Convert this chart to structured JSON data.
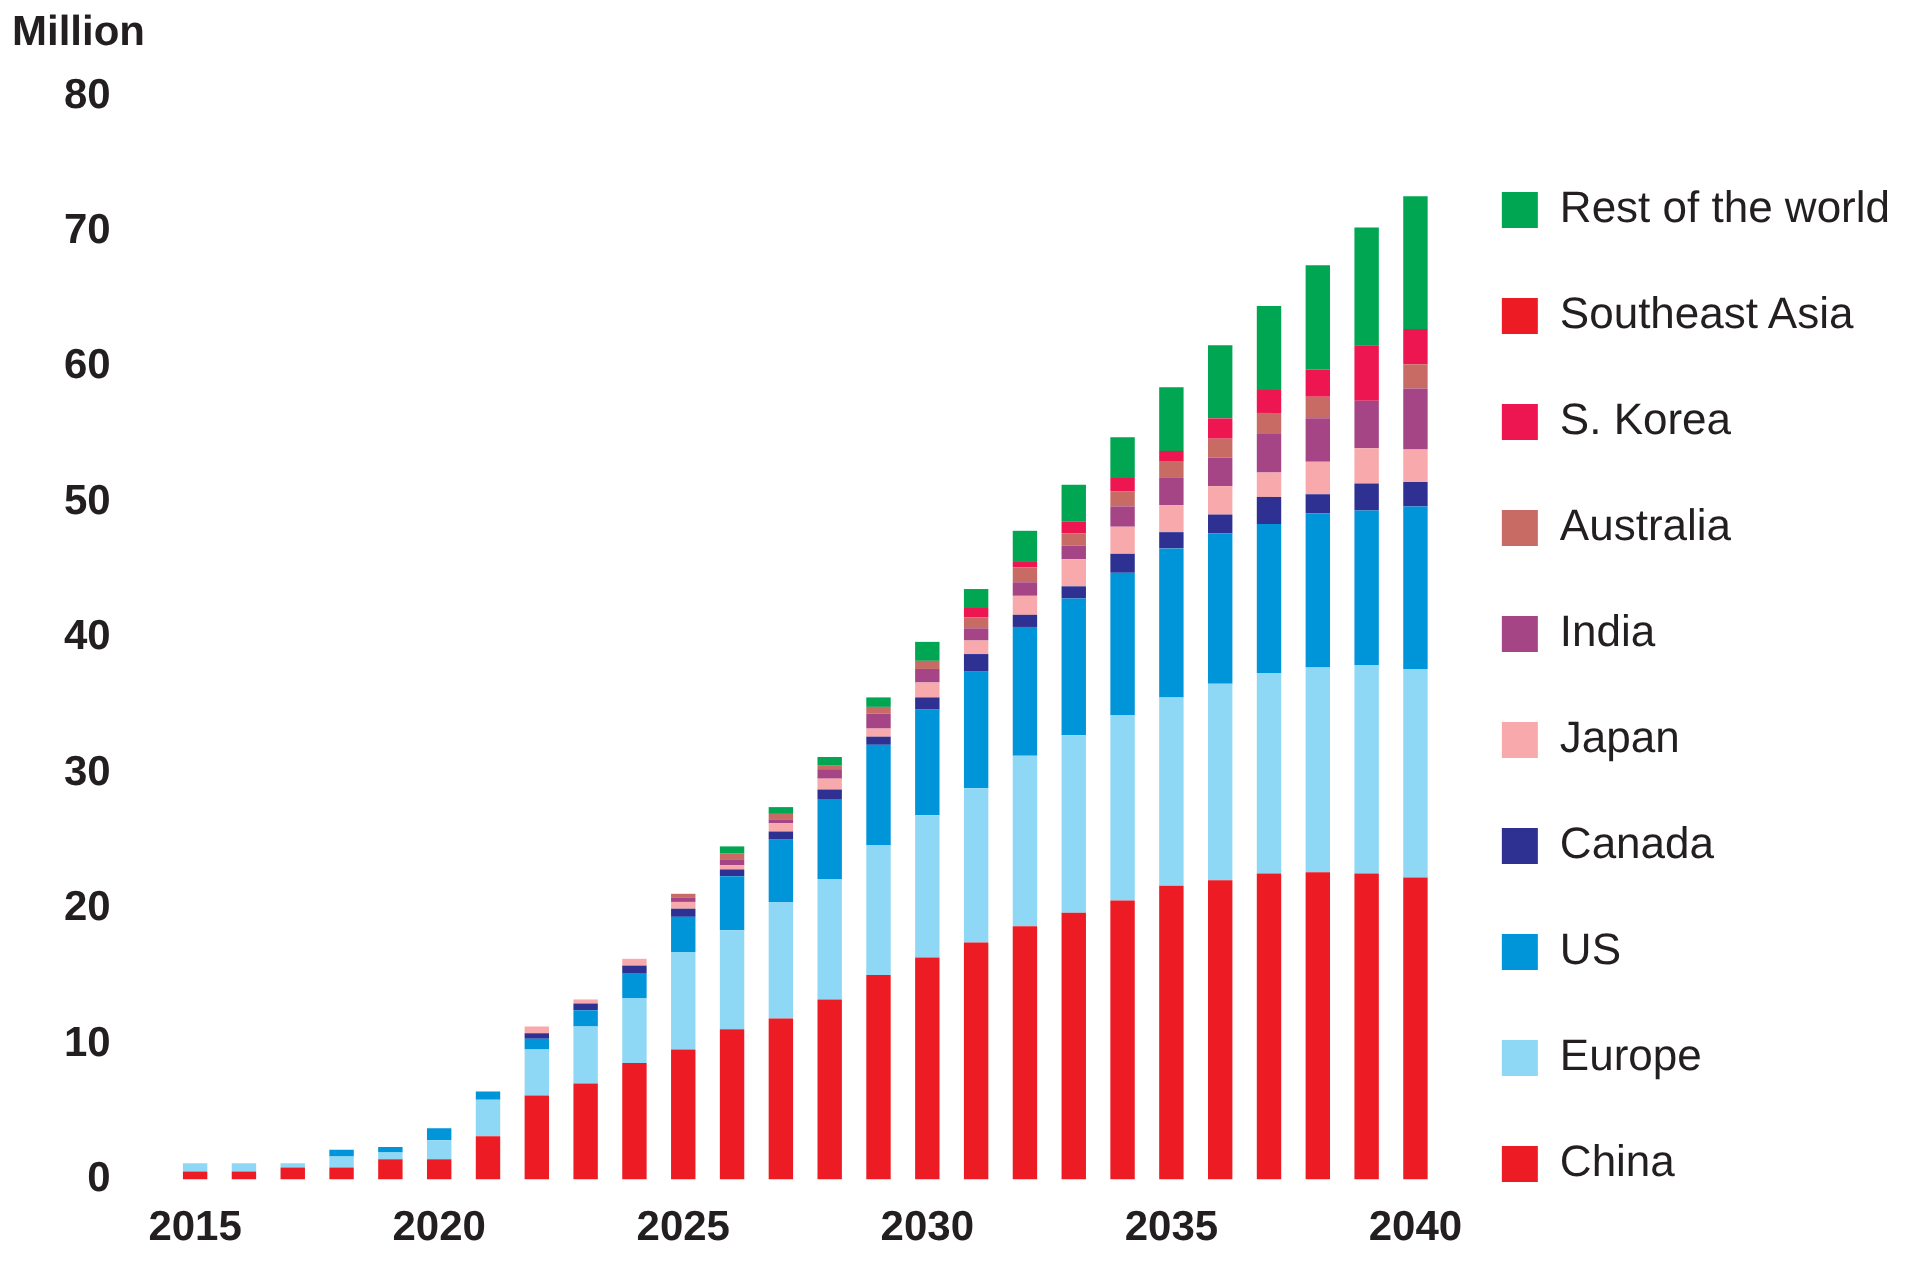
{
  "chart_data": {
    "type": "bar",
    "stacked": true,
    "ylabel": "Million",
    "legend": "right",
    "grid": false,
    "categories": [
      "2015",
      null,
      null,
      null,
      null,
      "2020",
      null,
      null,
      null,
      null,
      "2025",
      null,
      null,
      null,
      null,
      "2030",
      null,
      null,
      null,
      null,
      "2035",
      null,
      null,
      null,
      null,
      "2040"
    ],
    "ylim": [
      0,
      80
    ],
    "yticks": [
      0,
      10,
      20,
      30,
      40,
      50,
      60,
      70,
      80
    ],
    "series": [
      {
        "name": "China",
        "color": "#ed1c24",
        "values": [
          0.6,
          0.6,
          0.9,
          0.9,
          1.5,
          1.5,
          3.2,
          6.2,
          7.1,
          8.6,
          9.6,
          11.1,
          11.9,
          13.3,
          15.1,
          16.4,
          17.5,
          18.7,
          19.7,
          20.6,
          21.7,
          22.1,
          22.6,
          22.7,
          22.6,
          22.3
        ]
      },
      {
        "name": "Europe",
        "color": "#8fd8f5",
        "values": [
          0.6,
          0.6,
          0.3,
          0.8,
          0.5,
          1.4,
          2.7,
          3.4,
          4.2,
          4.8,
          7.2,
          7.3,
          8.6,
          8.9,
          9.6,
          10.5,
          11.4,
          12.6,
          13.1,
          13.7,
          13.9,
          14.5,
          14.8,
          15.1,
          15.4,
          15.4
        ]
      },
      {
        "name": "US",
        "color": "#0095d9",
        "values": [
          null,
          null,
          null,
          0.5,
          0.4,
          0.9,
          0.6,
          0.8,
          1.2,
          1.8,
          2.6,
          4.0,
          4.6,
          5.9,
          7.4,
          7.8,
          8.6,
          9.5,
          10.1,
          10.5,
          11.0,
          11.1,
          11.0,
          11.4,
          11.4,
          12.0
        ]
      },
      {
        "name": "Canada",
        "color": "#2e3192",
        "values": [
          null,
          null,
          null,
          null,
          null,
          null,
          null,
          0.4,
          0.5,
          0.6,
          0.6,
          0.5,
          0.6,
          0.7,
          0.6,
          0.9,
          1.3,
          0.9,
          0.9,
          1.4,
          1.2,
          1.4,
          2.0,
          1.4,
          2.0,
          1.8
        ]
      },
      {
        "name": "Japan",
        "color": "#f7a9ab",
        "values": [
          null,
          null,
          null,
          null,
          null,
          null,
          null,
          0.5,
          0.3,
          0.5,
          0.5,
          0.3,
          0.6,
          0.8,
          0.6,
          1.1,
          1.0,
          1.4,
          2.0,
          2.0,
          2.0,
          2.1,
          1.8,
          2.4,
          2.6,
          2.4
        ]
      },
      {
        "name": "India",
        "color": "#a54585",
        "values": [
          null,
          null,
          null,
          null,
          null,
          null,
          null,
          null,
          null,
          null,
          0.3,
          0.4,
          0.3,
          0.7,
          1.1,
          1.0,
          0.9,
          1.0,
          1.0,
          1.5,
          2.0,
          2.1,
          2.9,
          3.2,
          3.5,
          4.5
        ]
      },
      {
        "name": "Australia",
        "color": "#c96b65",
        "values": [
          null,
          null,
          null,
          null,
          null,
          null,
          null,
          null,
          null,
          null,
          0.3,
          0.5,
          0.4,
          0.3,
          0.5,
          0.6,
          0.8,
          1.1,
          0.9,
          1.1,
          1.2,
          1.4,
          1.5,
          1.6,
          null,
          1.8
        ]
      },
      {
        "name": "S. Korea",
        "color": "#ed1651",
        "values": [
          null,
          null,
          null,
          null,
          null,
          null,
          null,
          null,
          null,
          null,
          null,
          null,
          null,
          null,
          null,
          null,
          0.7,
          0.4,
          0.9,
          1.0,
          0.8,
          1.5,
          1.7,
          2.0,
          4.1,
          2.6
        ]
      },
      {
        "name": "Southeast Asia",
        "color": "#ed1c24",
        "values": [
          null,
          null,
          null,
          null,
          null,
          null,
          null,
          null,
          null,
          null,
          null,
          null,
          null,
          null,
          null,
          null,
          null,
          null,
          null,
          null,
          null,
          null,
          null,
          null,
          null,
          null
        ]
      },
      {
        "name": "Rest of the world",
        "color": "#00a651",
        "values": [
          null,
          null,
          null,
          null,
          null,
          null,
          null,
          null,
          null,
          null,
          null,
          0.5,
          0.5,
          0.6,
          0.7,
          1.4,
          1.4,
          2.3,
          2.7,
          3.0,
          4.7,
          5.4,
          6.2,
          7.7,
          8.7,
          9.8
        ]
      }
    ]
  }
}
